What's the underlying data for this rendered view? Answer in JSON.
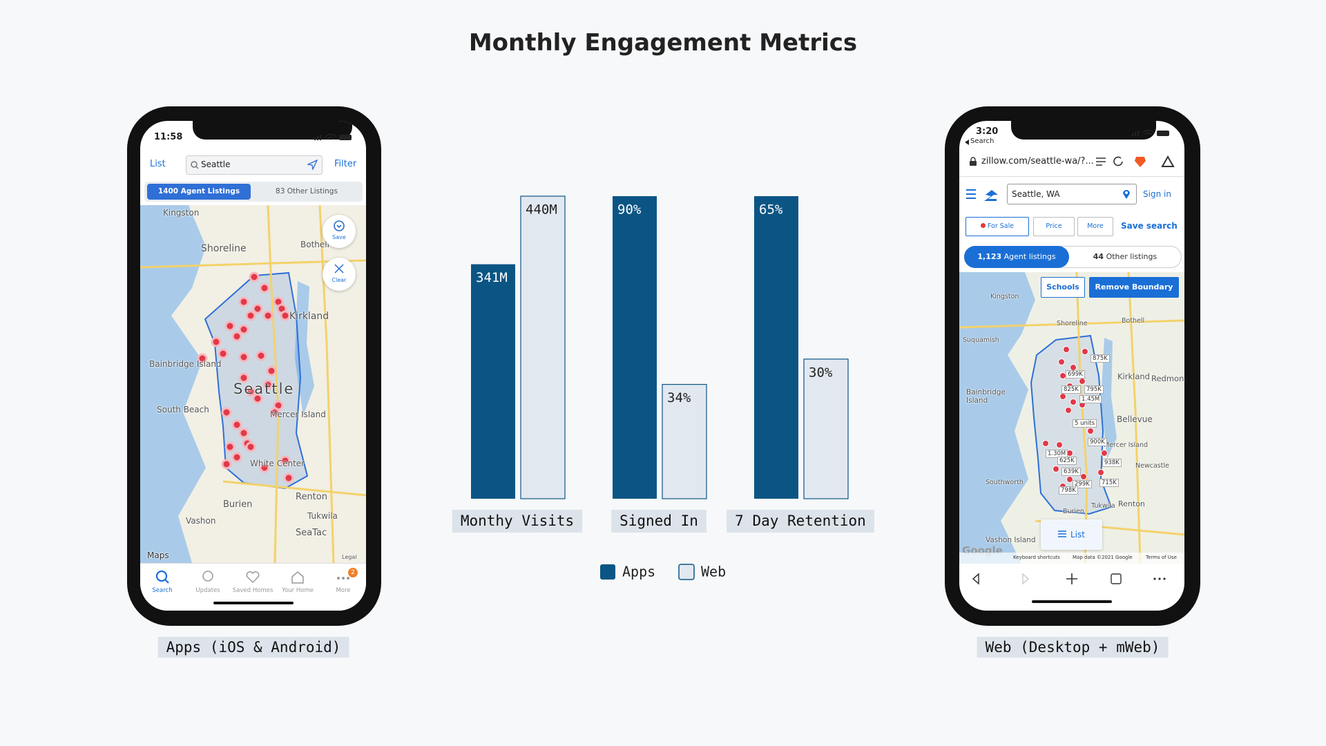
{
  "chart_data": {
    "type": "bar",
    "title": "Monthly Engagement Metrics",
    "categories": [
      "Monthy Visits",
      "Signed In",
      "7 Day Retention"
    ],
    "series": [
      {
        "name": "Apps",
        "color": "#0b5584",
        "values": [
          341000000,
          90,
          65
        ],
        "value_labels": [
          "341M",
          "90%",
          "65%"
        ]
      },
      {
        "name": "Web",
        "color": "#e2e8f0",
        "values": [
          440000000,
          34,
          30
        ],
        "value_labels": [
          "440M",
          "34%",
          "30%"
        ]
      }
    ],
    "legend": "bottom"
  },
  "apps_phone": {
    "caption": "Apps (iOS & Android)",
    "time": "11:58",
    "list": "List",
    "search": "Seattle",
    "filter": "Filter",
    "tabs": [
      "1400 Agent Listings",
      "83 Other Listings"
    ],
    "save": "Save",
    "clear": "Clear",
    "map_labels": [
      "Kingston",
      "Shoreline",
      "Bothell",
      "Kirkland",
      "Bainbridge Island",
      "Seattle",
      "South Beach",
      "Mercer Island",
      "White Center",
      "Burien",
      "Renton",
      "Tukwila",
      "Vashon",
      "SeaTac"
    ],
    "maps": "Maps",
    "legal": "Legal",
    "tab_bar": [
      "Search",
      "Updates",
      "Saved Homes",
      "Your Home",
      "More"
    ],
    "badge": "2"
  },
  "web_phone": {
    "caption": "Web (Desktop + mWeb)",
    "time": "3:20",
    "back": "Search",
    "url": "zillow.com/seattle-wa/?...",
    "search": "Seattle, WA",
    "sign_in": "Sign in",
    "filters": [
      "For Sale",
      "Price",
      "More"
    ],
    "save_search": "Save search",
    "tabs": [
      {
        "count": "1,123",
        "label": "Agent listings"
      },
      {
        "count": "44",
        "label": "Other listings"
      }
    ],
    "schools": "Schools",
    "remove_boundary": "Remove Boundary",
    "map_labels": [
      "Kingston",
      "Shoreline",
      "Bothell",
      "Suquamish",
      "Kirkland",
      "Redmond",
      "Bainbridge Island",
      "Bellevue",
      "Mercer Island",
      "Newcastle",
      "Southworth",
      "Tukwila",
      "Renton",
      "Burien",
      "Vashon Island"
    ],
    "prices": [
      "875K",
      "699K",
      "825K",
      "795K",
      "1.45M",
      "5 units",
      "900K",
      "1.30M",
      "625K",
      "938K",
      "639K",
      "299K",
      "715K",
      "798K"
    ],
    "list": "List",
    "google": "Google",
    "footer": [
      "Keyboard shortcuts",
      "Map data ©2021 Google",
      "Terms of Use"
    ]
  }
}
